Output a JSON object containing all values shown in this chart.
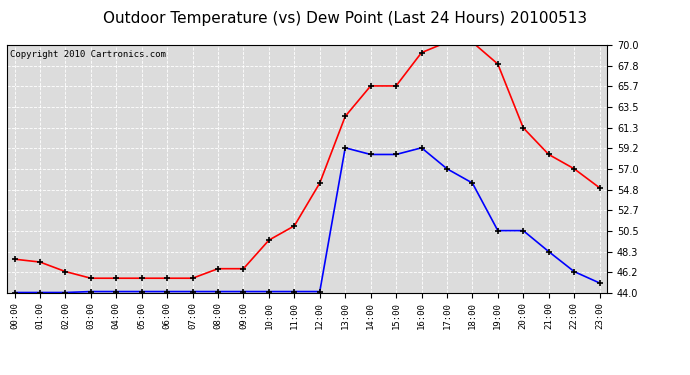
{
  "title": "Outdoor Temperature (vs) Dew Point (Last 24 Hours) 20100513",
  "copyright": "Copyright 2010 Cartronics.com",
  "hours": [
    "00:00",
    "01:00",
    "02:00",
    "03:00",
    "04:00",
    "05:00",
    "06:00",
    "07:00",
    "08:00",
    "09:00",
    "10:00",
    "11:00",
    "12:00",
    "13:00",
    "14:00",
    "15:00",
    "16:00",
    "17:00",
    "18:00",
    "19:00",
    "20:00",
    "21:00",
    "22:00",
    "23:00"
  ],
  "temp": [
    44.0,
    44.0,
    44.0,
    44.1,
    44.1,
    44.1,
    44.1,
    44.1,
    44.1,
    44.1,
    44.1,
    44.1,
    44.1,
    59.2,
    58.5,
    58.5,
    59.2,
    57.0,
    55.5,
    50.5,
    50.5,
    48.3,
    46.2,
    45.0
  ],
  "dewpoint": [
    47.5,
    47.2,
    46.2,
    45.5,
    45.5,
    45.5,
    45.5,
    45.5,
    46.5,
    46.5,
    49.5,
    51.0,
    55.5,
    62.5,
    65.7,
    65.7,
    69.2,
    70.3,
    70.3,
    68.0,
    61.3,
    58.5,
    57.0,
    55.0
  ],
  "temp_color": "#0000ff",
  "dewpoint_color": "#ff0000",
  "ylim": [
    44.0,
    70.0
  ],
  "yticks": [
    44.0,
    46.2,
    48.3,
    50.5,
    52.7,
    54.8,
    57.0,
    59.2,
    61.3,
    63.5,
    65.7,
    67.8,
    70.0
  ],
  "bg_color": "#ffffff",
  "plot_bg": "#dcdcdc",
  "grid_color": "#ffffff",
  "title_fontsize": 11,
  "copyright_fontsize": 6.5
}
